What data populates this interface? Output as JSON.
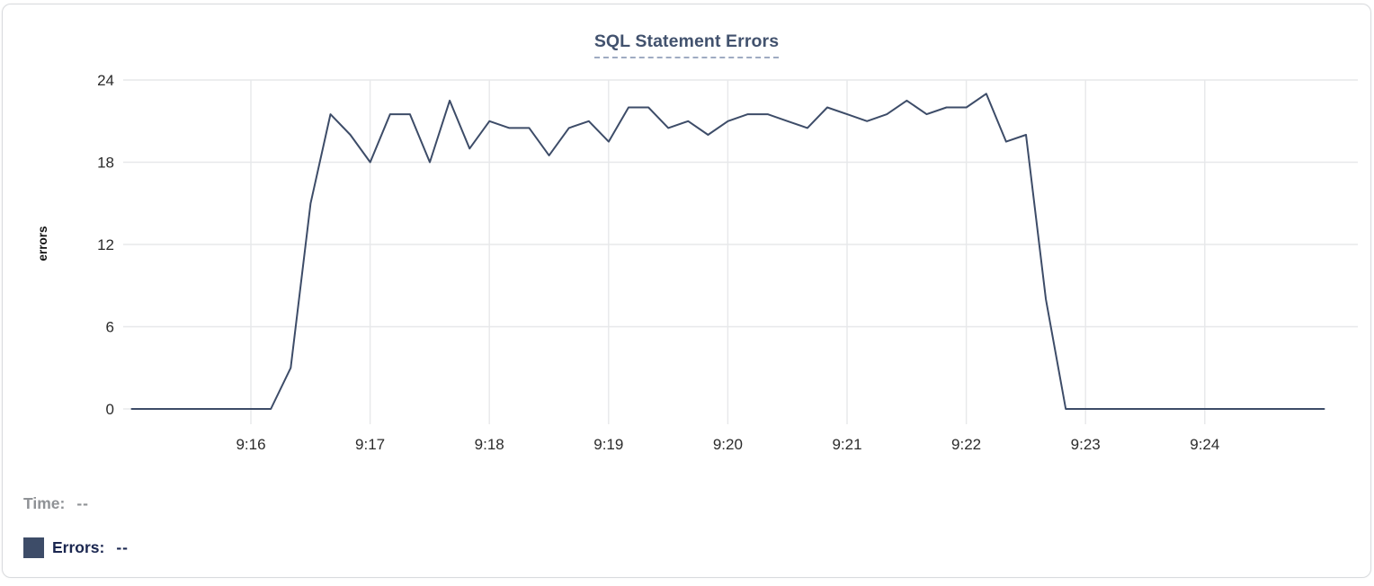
{
  "panel": {
    "title": "SQL Statement Errors"
  },
  "tooltip_readout": {
    "time_label": "Time:",
    "time_value": "--",
    "errors_label": "Errors:",
    "errors_value": "--"
  },
  "colors": {
    "line": "#3d4c68",
    "legend_swatch": "#3d4c68",
    "title_text": "#42526e",
    "title_underline": "#9fabc2",
    "axis_text": "#2b2b2b",
    "grid": "#e7e8ea",
    "time_readout_text": "#8f9296",
    "errors_readout_text": "#1b2750",
    "card_border": "#d9dbde"
  },
  "chart_data": {
    "type": "line",
    "title": "SQL Statement Errors",
    "xlabel": "",
    "ylabel": "errors",
    "ylim": [
      0,
      24
    ],
    "y_ticks": [
      0,
      6,
      12,
      18,
      24
    ],
    "x_ticks": [
      "9:16",
      "9:17",
      "9:18",
      "9:19",
      "9:20",
      "9:21",
      "9:22",
      "9:23",
      "9:24"
    ],
    "grid": true,
    "legend_position": "none",
    "point_interval_seconds": 10,
    "series": [
      {
        "name": "Errors",
        "color": "#3d4c68",
        "x": [
          "9:15:00",
          "9:15:10",
          "9:15:20",
          "9:15:30",
          "9:15:40",
          "9:15:50",
          "9:16:00",
          "9:16:10",
          "9:16:20",
          "9:16:30",
          "9:16:40",
          "9:16:50",
          "9:17:00",
          "9:17:10",
          "9:17:20",
          "9:17:30",
          "9:17:40",
          "9:17:50",
          "9:18:00",
          "9:18:10",
          "9:18:20",
          "9:18:30",
          "9:18:40",
          "9:18:50",
          "9:19:00",
          "9:19:10",
          "9:19:20",
          "9:19:30",
          "9:19:40",
          "9:19:50",
          "9:20:00",
          "9:20:10",
          "9:20:20",
          "9:20:30",
          "9:20:40",
          "9:20:50",
          "9:21:00",
          "9:21:10",
          "9:21:20",
          "9:21:30",
          "9:21:40",
          "9:21:50",
          "9:22:00",
          "9:22:10",
          "9:22:20",
          "9:22:30",
          "9:22:40",
          "9:22:50",
          "9:23:00",
          "9:23:10",
          "9:23:20",
          "9:23:30",
          "9:23:40",
          "9:23:50",
          "9:24:00",
          "9:24:10",
          "9:24:20",
          "9:24:30",
          "9:24:40",
          "9:24:50",
          "9:25:00"
        ],
        "values": [
          0,
          0,
          0,
          0,
          0,
          0,
          0,
          0,
          3,
          15,
          21.5,
          20,
          18,
          21.5,
          21.5,
          18,
          22.5,
          19,
          21,
          20.5,
          20.5,
          18.5,
          20.5,
          21,
          19.5,
          22,
          22,
          20.5,
          21,
          20,
          21,
          21.5,
          21.5,
          21,
          20.5,
          22,
          21.5,
          21,
          21.5,
          22.5,
          21.5,
          22,
          22,
          23,
          19.5,
          20,
          8,
          0,
          0,
          0,
          0,
          0,
          0,
          0,
          0,
          0,
          0,
          0,
          0,
          0,
          0
        ]
      }
    ]
  }
}
